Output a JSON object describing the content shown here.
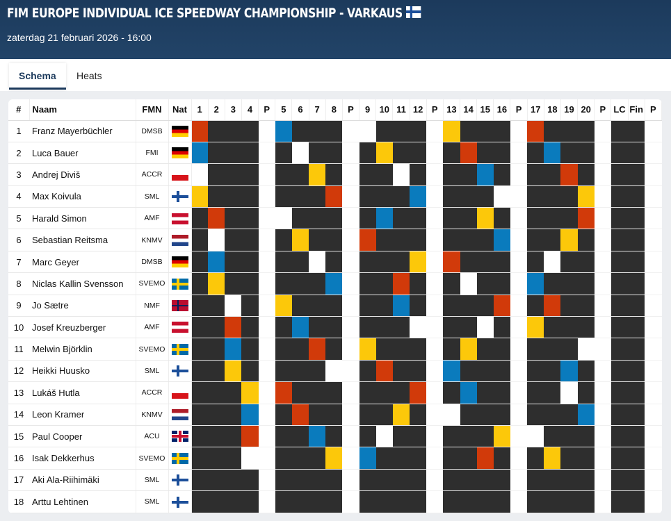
{
  "header": {
    "title": "FIM EUROPE INDIVIDUAL ICE SPEEDWAY CHAMPIONSHIP - VARKAUS",
    "title_flag": "flag-finland-icon",
    "date": "zaterdag 21 februari 2026 - 16:00"
  },
  "tabs": [
    {
      "label": "Schema",
      "active": true
    },
    {
      "label": "Heats",
      "active": false
    }
  ],
  "columns": {
    "num": "#",
    "name": "Naam",
    "fmn": "FMN",
    "nat": "Nat",
    "heat_cols": [
      "1",
      "2",
      "3",
      "4",
      "P",
      "5",
      "6",
      "7",
      "8",
      "P",
      "9",
      "10",
      "11",
      "12",
      "P",
      "13",
      "14",
      "15",
      "16",
      "P",
      "17",
      "18",
      "19",
      "20",
      "P",
      "LC",
      "Fin",
      "P"
    ]
  },
  "colors": {
    "red": "#d13a0a",
    "blue": "#0a7bbd",
    "white": "#ffffff",
    "yellow": "#fcc80a",
    "empty": "#2e2e2e",
    "pause": "#ffffff"
  },
  "riders": [
    {
      "num": "1",
      "name": "Franz Mayerbüchler",
      "fmn": "DMSB",
      "nat": "GER"
    },
    {
      "num": "2",
      "name": "Luca Bauer",
      "fmn": "FMI",
      "nat": "GER"
    },
    {
      "num": "3",
      "name": "Andrej Diviš",
      "fmn": "ACCR",
      "nat": "CZE"
    },
    {
      "num": "4",
      "name": "Max Koivula",
      "fmn": "SML",
      "nat": "FIN"
    },
    {
      "num": "5",
      "name": "Harald Simon",
      "fmn": "AMF",
      "nat": "AUT"
    },
    {
      "num": "6",
      "name": "Sebastian Reitsma",
      "fmn": "KNMV",
      "nat": "NED"
    },
    {
      "num": "7",
      "name": "Marc Geyer",
      "fmn": "DMSB",
      "nat": "GER"
    },
    {
      "num": "8",
      "name": "Niclas Kallin Svensson",
      "fmn": "SVEMO",
      "nat": "SWE"
    },
    {
      "num": "9",
      "name": "Jo Sætre",
      "fmn": "NMF",
      "nat": "NOR"
    },
    {
      "num": "10",
      "name": "Josef Kreuzberger",
      "fmn": "AMF",
      "nat": "AUT"
    },
    {
      "num": "11",
      "name": "Melwin Björklin",
      "fmn": "SVEMO",
      "nat": "SWE"
    },
    {
      "num": "12",
      "name": "Heikki Huusko",
      "fmn": "SML",
      "nat": "FIN"
    },
    {
      "num": "13",
      "name": "Lukáš Hutla",
      "fmn": "ACCR",
      "nat": "CZE"
    },
    {
      "num": "14",
      "name": "Leon Kramer",
      "fmn": "KNMV",
      "nat": "NED"
    },
    {
      "num": "15",
      "name": "Paul Cooper",
      "fmn": "ACU",
      "nat": "GBR"
    },
    {
      "num": "16",
      "name": "Isak Dekkerhus",
      "fmn": "SVEMO",
      "nat": "SWE"
    },
    {
      "num": "17",
      "name": "Aki Ala-Riihimäki",
      "fmn": "SML",
      "nat": "FIN"
    },
    {
      "num": "18",
      "name": "Arttu Lehtinen",
      "fmn": "SML",
      "nat": "FIN"
    }
  ],
  "heats": [
    {
      "red": 1,
      "blue": 2,
      "white": 3,
      "yellow": 4
    },
    {
      "red": 5,
      "white": 6,
      "blue": 7,
      "yellow": 8
    },
    {
      "white": 9,
      "red": 10,
      "blue": 11,
      "yellow": 12
    },
    {
      "yellow": 13,
      "blue": 14,
      "red": 15,
      "white": 16
    },
    {
      "blue": 1,
      "white": 5,
      "yellow": 9,
      "red": 13
    },
    {
      "white": 2,
      "yellow": 6,
      "blue": 10,
      "red": 14
    },
    {
      "yellow": 3,
      "white": 7,
      "red": 11,
      "blue": 15
    },
    {
      "red": 4,
      "blue": 8,
      "white": 12,
      "yellow": 16
    },
    {
      "white": 1,
      "red": 6,
      "yellow": 11,
      "blue": 16
    },
    {
      "yellow": 2,
      "blue": 5,
      "red": 12,
      "white": 15
    },
    {
      "white": 3,
      "red": 8,
      "blue": 9,
      "yellow": 14
    },
    {
      "blue": 4,
      "yellow": 7,
      "white": 10,
      "red": 13
    },
    {
      "yellow": 1,
      "red": 7,
      "blue": 12,
      "white": 14
    },
    {
      "red": 2,
      "white": 8,
      "yellow": 11,
      "blue": 13
    },
    {
      "blue": 3,
      "yellow": 5,
      "white": 10,
      "red": 16
    },
    {
      "white": 4,
      "blue": 6,
      "red": 9,
      "yellow": 15
    },
    {
      "red": 1,
      "blue": 8,
      "yellow": 10,
      "white": 15
    },
    {
      "blue": 2,
      "white": 7,
      "red": 9,
      "yellow": 16
    },
    {
      "red": 3,
      "yellow": 6,
      "blue": 12,
      "white": 13
    },
    {
      "yellow": 4,
      "red": 5,
      "white": 11,
      "blue": 14
    }
  ]
}
